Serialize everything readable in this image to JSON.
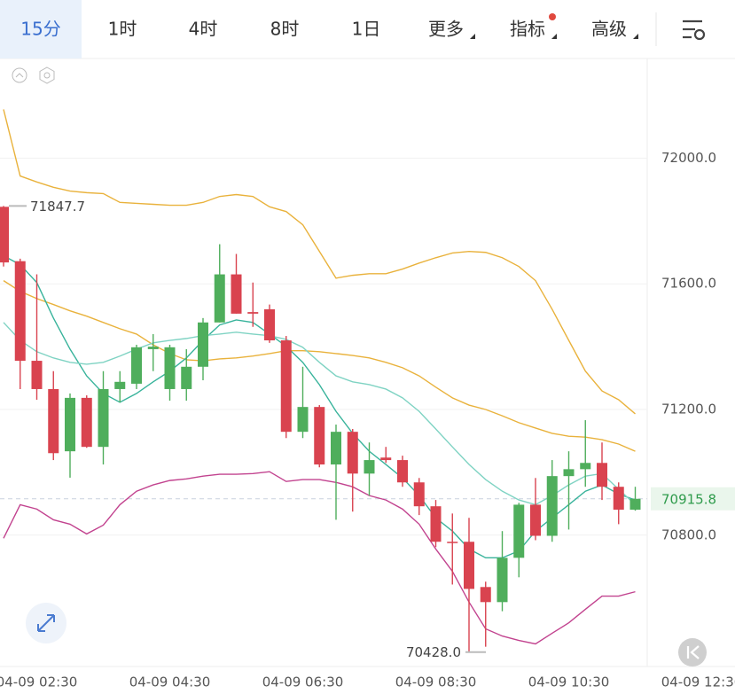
{
  "toolbar": {
    "tabs": [
      "15分",
      "1时",
      "4时",
      "8时",
      "1日",
      "更多",
      "指标",
      "高级"
    ],
    "active_tab": 0
  },
  "chart_data": {
    "type": "candlestick",
    "categories": [
      null,
      null,
      "04-09 02:30",
      null,
      null,
      null,
      null,
      null,
      null,
      null,
      "04-09 04:30",
      null,
      null,
      null,
      null,
      null,
      null,
      null,
      "04-09 06:30",
      null,
      null,
      null,
      null,
      null,
      null,
      null,
      "04-09 08:30",
      null,
      null,
      null,
      null,
      null,
      null,
      null,
      "04-09 10:30",
      null,
      null,
      null,
      null,
      null,
      null,
      null,
      "04-09 12:30"
    ],
    "open": [
      71845,
      71672,
      71355,
      71265,
      71067,
      71237,
      71081,
      71265,
      71282,
      71392,
      71265,
      71265,
      71336,
      71477,
      71630,
      71510,
      71519,
      71420,
      71129,
      71208,
      71025,
      71129,
      70996,
      71047,
      71039,
      70968,
      70892,
      70779,
      70779,
      70635,
      70587,
      70728,
      70897,
      70798,
      70988,
      71010,
      71030,
      70954,
      70881,
      null,
      null,
      null,
      null
    ],
    "high": [
      71847.7,
      71680,
      71630,
      71322,
      71251,
      71245,
      71322,
      71322,
      71406,
      71440,
      71406,
      71392,
      71491,
      71726,
      71695,
      71604,
      71534,
      71434,
      71336,
      71214,
      71152,
      71138,
      71095,
      71081,
      71053,
      70982,
      70912,
      70869,
      70855,
      70652,
      70813,
      70903,
      70982,
      71039,
      71067,
      71166,
      71095,
      70968,
      70954,
      null,
      null,
      null,
      null
    ],
    "low": [
      71655,
      71265,
      71231,
      71039,
      70983,
      71078,
      71025,
      71223,
      71265,
      71322,
      71228,
      71228,
      71293,
      71477,
      71505,
      71463,
      71412,
      71109,
      71109,
      71016,
      70849,
      70875,
      70926,
      71030,
      70954,
      70864,
      70762,
      70643,
      70428,
      70445,
      70558,
      70666,
      70784,
      70779,
      70818,
      70954,
      70912,
      70835,
      70878,
      null,
      null,
      null,
      null
    ],
    "close": [
      71668,
      71355,
      71265,
      71061,
      71237,
      71081,
      71265,
      71288,
      71398,
      71400,
      71398,
      71336,
      71477,
      71630,
      71505,
      71505,
      71420,
      71129,
      71208,
      71025,
      71129,
      70996,
      71039,
      71039,
      70968,
      70892,
      70779,
      70776,
      70629,
      70587,
      70728,
      70897,
      70798,
      70988,
      71010,
      71030,
      70954,
      70881,
      70915.8,
      null,
      null,
      null,
      null
    ],
    "up_color": "#4fae5c",
    "down_color": "#d9434f",
    "series": [
      {
        "color": "#e9b23c",
        "values": [
          72155,
          71943,
          71924,
          71907,
          71895,
          71890,
          71887,
          71859,
          71856,
          71853,
          71850,
          71850,
          71859,
          71878,
          71884,
          71878,
          71845,
          71830,
          71788,
          71703,
          71618,
          71627,
          71632,
          71632,
          71647,
          71666,
          71683,
          71698,
          71703,
          71700,
          71683,
          71655,
          71610,
          71519,
          71420,
          71322,
          71259,
          71231,
          71186,
          null,
          null,
          null,
          null
        ]
      },
      {
        "color": "#e9b23c",
        "values": [
          71610,
          71576,
          71553,
          71534,
          71514,
          71497,
          71477,
          71457,
          71440,
          71406,
          71378,
          71358,
          71355,
          71361,
          71364,
          71370,
          71378,
          71387,
          71387,
          71384,
          71378,
          71372,
          71364,
          71350,
          71333,
          71307,
          71271,
          71237,
          71214,
          71200,
          71180,
          71158,
          71141,
          71124,
          71115,
          71112,
          71104,
          71090,
          71067,
          null,
          null,
          null,
          null
        ]
      },
      {
        "color": "#c2438f",
        "values": [
          70790,
          70897,
          70883,
          70849,
          70835,
          70804,
          70832,
          70897,
          70940,
          70960,
          70974,
          70979,
          70988,
          70994,
          70994,
          70996,
          71002,
          70971,
          70977,
          70977,
          70968,
          70954,
          70926,
          70912,
          70883,
          70835,
          70756,
          70685,
          70587,
          70502,
          70479,
          70465,
          70454,
          70488,
          70521,
          70564,
          70606,
          70606,
          70620,
          null,
          null,
          null,
          null
        ]
      },
      {
        "color": "#38b39b",
        "values": [
          71689,
          71661,
          71604,
          71491,
          71392,
          71307,
          71251,
          71223,
          71251,
          71288,
          71322,
          71364,
          71420,
          71469,
          71485,
          71477,
          71440,
          71401,
          71350,
          71279,
          71194,
          71124,
          71067,
          71025,
          70982,
          70926,
          70855,
          70813,
          70756,
          70728,
          70728,
          70750,
          70813,
          70855,
          70897,
          70940,
          70960,
          70931,
          70912,
          null,
          null,
          null,
          null
        ]
      },
      {
        "color": "#7fd3c3",
        "values": [
          71477,
          71420,
          71384,
          71364,
          71350,
          71344,
          71350,
          71370,
          71392,
          71412,
          71420,
          71426,
          71435,
          71440,
          71446,
          71440,
          71435,
          71423,
          71398,
          71350,
          71307,
          71288,
          71279,
          71265,
          71237,
          71194,
          71138,
          71081,
          71025,
          70977,
          70940,
          70912,
          70897,
          70926,
          70960,
          70988,
          70996,
          70946,
          70897,
          null,
          null,
          null,
          null
        ]
      }
    ],
    "ylim": [
      70382,
      72317
    ],
    "yticks": [
      {
        "value": 70800,
        "label": "70800.0"
      },
      {
        "value": 71200,
        "label": "71200.0"
      },
      {
        "value": 71600,
        "label": "71600.0"
      },
      {
        "value": 72000,
        "label": "72000.0"
      }
    ],
    "grid": true,
    "last_price": {
      "value": 70915.8,
      "label": "70915.8"
    },
    "high_marker": {
      "value": 71847.7,
      "label": "71847.7"
    },
    "low_marker": {
      "value": 70428,
      "label": "70428.0"
    }
  }
}
